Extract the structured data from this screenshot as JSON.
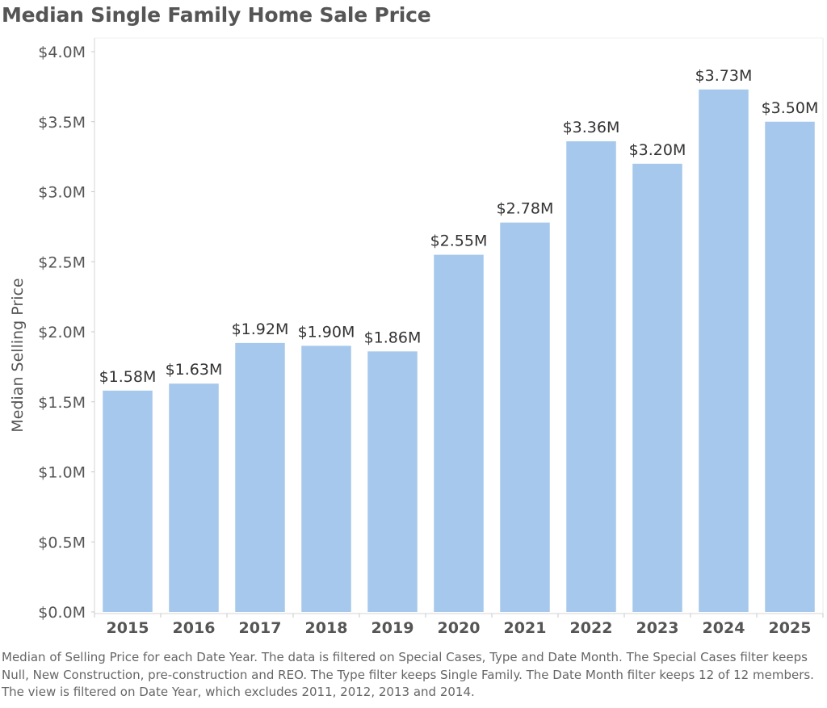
{
  "title": "Median Single Family Home Sale Price",
  "caption": "Median of Selling Price for each Date Year. The data is filtered on Special Cases, Type and Date Month. The Special Cases filter keeps Null, New Construction, pre-construction and REO. The Type filter keeps Single Family. The Date Month filter keeps 12 of 12 members. The view is filtered on Date Year, which excludes 2011, 2012, 2013 and 2014.",
  "colors": {
    "bar": "#a5c8ec",
    "axis_text": "#555555",
    "label_text": "#333333",
    "gridline": "#e6e6e6"
  },
  "chart_data": {
    "type": "bar",
    "title": "Median Single Family Home Sale Price",
    "xlabel": "",
    "ylabel": "Median Selling Price",
    "categories": [
      "2015",
      "2016",
      "2017",
      "2018",
      "2019",
      "2020",
      "2021",
      "2022",
      "2023",
      "2024",
      "2025"
    ],
    "values": [
      1.58,
      1.63,
      1.92,
      1.9,
      1.86,
      2.55,
      2.78,
      3.36,
      3.2,
      3.73,
      3.5
    ],
    "data_labels": [
      "$1.58M",
      "$1.63M",
      "$1.92M",
      "$1.90M",
      "$1.86M",
      "$2.55M",
      "$2.78M",
      "$3.36M",
      "$3.20M",
      "$3.73M",
      "$3.50M"
    ],
    "y_ticks": [
      0,
      0.5,
      1.0,
      1.5,
      2.0,
      2.5,
      3.0,
      3.5,
      4.0
    ],
    "y_tick_labels": [
      "$0.0M",
      "$0.5M",
      "$1.0M",
      "$1.5M",
      "$2.0M",
      "$2.5M",
      "$3.0M",
      "$3.5M",
      "$4.0M"
    ],
    "ylim": [
      0,
      4.0
    ],
    "y_unit": "millions USD",
    "grid": false,
    "legend": "none"
  }
}
